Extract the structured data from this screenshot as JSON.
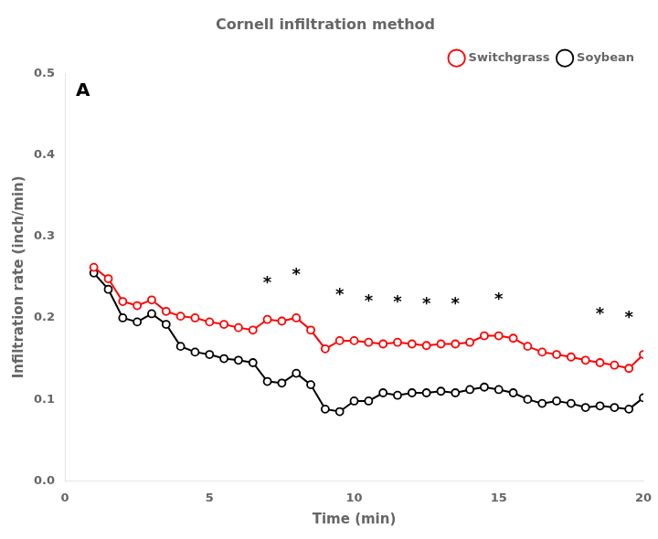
{
  "chart_data": {
    "type": "line",
    "title": "Cornell infiltration method",
    "panel_label": "A",
    "xlabel": "Time (min)",
    "ylabel": "Infiltration rate (inch/min)",
    "xlim": [
      0,
      20
    ],
    "ylim": [
      0.0,
      0.5
    ],
    "xticks": [
      0,
      5,
      10,
      15,
      20
    ],
    "yticks": [
      {
        "value": 0.0,
        "label": "0.0"
      },
      0.1,
      0.2,
      0.3,
      0.4,
      0.5
    ],
    "grid": false,
    "legend": "upper right",
    "marker": "circle",
    "x": [
      1,
      1.5,
      2,
      2.5,
      3,
      3.5,
      4,
      4.5,
      5,
      5.5,
      6,
      6.5,
      7,
      7.5,
      8,
      8.5,
      9,
      9.5,
      10,
      10.5,
      11,
      11.5,
      12,
      12.5,
      13,
      13.5,
      14,
      14.5,
      15,
      15.5,
      16,
      16.5,
      17,
      17.5,
      18,
      18.5,
      19,
      19.5,
      20
    ],
    "series": [
      {
        "name": "Switchgrass",
        "color": "#ff0000",
        "values": [
          0.262,
          0.248,
          0.22,
          0.215,
          0.222,
          0.208,
          0.202,
          0.2,
          0.195,
          0.192,
          0.188,
          0.185,
          0.198,
          0.196,
          0.2,
          0.185,
          0.162,
          0.172,
          0.172,
          0.17,
          0.168,
          0.17,
          0.168,
          0.166,
          0.168,
          0.168,
          0.17,
          0.178,
          0.178,
          0.175,
          0.165,
          0.158,
          0.155,
          0.152,
          0.148,
          0.145,
          0.142,
          0.138,
          0.155
        ]
      },
      {
        "name": "Soybean",
        "color": "#000000",
        "values": [
          0.255,
          0.235,
          0.2,
          0.195,
          0.205,
          0.192,
          0.165,
          0.158,
          0.155,
          0.15,
          0.148,
          0.145,
          0.122,
          0.12,
          0.132,
          0.118,
          0.088,
          0.085,
          0.098,
          0.098,
          0.108,
          0.105,
          0.108,
          0.108,
          0.11,
          0.108,
          0.112,
          0.115,
          0.112,
          0.108,
          0.1,
          0.095,
          0.098,
          0.095,
          0.09,
          0.092,
          0.09,
          0.088,
          0.102
        ]
      }
    ],
    "annotations": [
      {
        "x": 7.0,
        "y": 0.232,
        "text": "*"
      },
      {
        "x": 8.0,
        "y": 0.242,
        "text": "*"
      },
      {
        "x": 9.5,
        "y": 0.218,
        "text": "*"
      },
      {
        "x": 10.5,
        "y": 0.21,
        "text": "*"
      },
      {
        "x": 11.5,
        "y": 0.208,
        "text": "*"
      },
      {
        "x": 12.5,
        "y": 0.206,
        "text": "*"
      },
      {
        "x": 13.5,
        "y": 0.206,
        "text": "*"
      },
      {
        "x": 15.0,
        "y": 0.212,
        "text": "*"
      },
      {
        "x": 18.5,
        "y": 0.194,
        "text": "*"
      },
      {
        "x": 19.5,
        "y": 0.19,
        "text": "*"
      }
    ]
  }
}
